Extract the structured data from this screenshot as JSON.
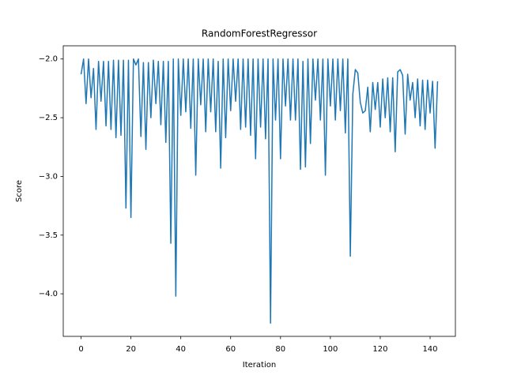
{
  "chart_data": {
    "type": "line",
    "title": "RandomForestRegressor",
    "xlabel": "Iteration",
    "ylabel": "Score",
    "color": "#1f77b4",
    "x": [
      0,
      1,
      2,
      3,
      4,
      5,
      6,
      7,
      8,
      9,
      10,
      11,
      12,
      13,
      14,
      15,
      16,
      17,
      18,
      19,
      20,
      21,
      22,
      23,
      24,
      25,
      26,
      27,
      28,
      29,
      30,
      31,
      32,
      33,
      34,
      35,
      36,
      37,
      38,
      39,
      40,
      41,
      42,
      43,
      44,
      45,
      46,
      47,
      48,
      49,
      50,
      51,
      52,
      53,
      54,
      55,
      56,
      57,
      58,
      59,
      60,
      61,
      62,
      63,
      64,
      65,
      66,
      67,
      68,
      69,
      70,
      71,
      72,
      73,
      74,
      75,
      76,
      77,
      78,
      79,
      80,
      81,
      82,
      83,
      84,
      85,
      86,
      87,
      88,
      89,
      90,
      91,
      92,
      93,
      94,
      95,
      96,
      97,
      98,
      99,
      100,
      101,
      102,
      103,
      104,
      105,
      106,
      107,
      108,
      109,
      110,
      111,
      112,
      113,
      114,
      115,
      116,
      117,
      118,
      119,
      120,
      121,
      122,
      123,
      124,
      125,
      126,
      127,
      128,
      129,
      130,
      131,
      132,
      133,
      134,
      135,
      136,
      137,
      138,
      139,
      140,
      141,
      142,
      143
    ],
    "values": [
      -2.13,
      -2.0,
      -2.38,
      -2.0,
      -2.33,
      -2.08,
      -2.6,
      -2.02,
      -2.36,
      -2.02,
      -2.57,
      -2.02,
      -2.6,
      -2.01,
      -2.67,
      -2.01,
      -2.65,
      -2.01,
      -3.27,
      -2.01,
      -3.35,
      -2.0,
      -2.05,
      -2.0,
      -2.66,
      -2.03,
      -2.77,
      -2.03,
      -2.5,
      -2.01,
      -2.38,
      -2.02,
      -2.56,
      -2.02,
      -2.71,
      -2.02,
      -3.57,
      -2.0,
      -4.02,
      -2.0,
      -2.48,
      -2.0,
      -2.45,
      -2.0,
      -2.59,
      -2.0,
      -2.99,
      -2.0,
      -2.39,
      -2.0,
      -2.62,
      -2.0,
      -2.45,
      -2.0,
      -2.62,
      -2.02,
      -2.93,
      -2.0,
      -2.67,
      -2.0,
      -2.44,
      -2.0,
      -2.36,
      -2.0,
      -2.6,
      -2.0,
      -2.58,
      -2.0,
      -2.65,
      -2.0,
      -2.85,
      -2.0,
      -2.58,
      -2.0,
      -2.68,
      -2.0,
      -4.25,
      -2.0,
      -2.52,
      -2.0,
      -2.85,
      -2.0,
      -2.4,
      -2.0,
      -2.52,
      -2.0,
      -2.52,
      -2.0,
      -2.94,
      -2.02,
      -2.92,
      -2.0,
      -2.72,
      -2.0,
      -2.35,
      -2.0,
      -2.52,
      -2.0,
      -2.99,
      -2.0,
      -2.4,
      -2.0,
      -2.52,
      -2.0,
      -2.44,
      -2.0,
      -2.63,
      -2.0,
      -3.68,
      -2.3,
      -2.09,
      -2.12,
      -2.37,
      -2.46,
      -2.44,
      -2.24,
      -2.62,
      -2.2,
      -2.43,
      -2.2,
      -2.58,
      -2.17,
      -2.5,
      -2.16,
      -2.62,
      -2.16,
      -2.79,
      -2.11,
      -2.09,
      -2.14,
      -2.64,
      -2.13,
      -2.35,
      -2.2,
      -2.5,
      -2.17,
      -2.57,
      -2.18,
      -2.6,
      -2.18,
      -2.46,
      -2.19,
      -2.76,
      -2.19
    ],
    "xlim": [
      -7.15,
      150.15
    ],
    "ylim": [
      -4.3625,
      -1.8875
    ],
    "xticks": [
      0,
      20,
      40,
      60,
      80,
      100,
      120,
      140
    ],
    "yticks": [
      {
        "value": -4.0,
        "label": "−4.0"
      },
      {
        "value": -3.5,
        "label": "−3.5"
      },
      {
        "value": -3.0,
        "label": "−3.0"
      },
      {
        "value": -2.5,
        "label": "−2.5"
      },
      {
        "value": -2.0,
        "label": "−2.0"
      }
    ]
  }
}
